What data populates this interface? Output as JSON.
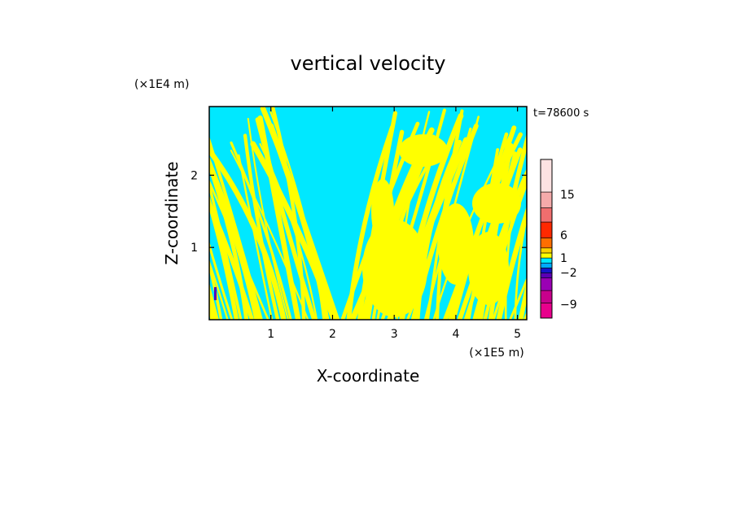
{
  "chart_data": {
    "type": "heatmap",
    "title": "vertical velocity",
    "xlabel": "X-coordinate",
    "ylabel": "Z-coordinate",
    "x_unit": "(×1E5 m)",
    "y_unit": "(×1E4 m)",
    "time_label": "t=78600 s",
    "xlim": [
      0,
      5.15
    ],
    "ylim": [
      0,
      2.95
    ],
    "x_ticks": [
      "1",
      "2",
      "3",
      "4",
      "5"
    ],
    "y_ticks": [
      "1",
      "2"
    ],
    "colorbar": {
      "tick_labels": [
        "15",
        "6",
        "1",
        "−2",
        "−9"
      ],
      "colors_bottom_to_top": [
        "#e8008c",
        "#c8008c",
        "#9a00b4",
        "#5a00b4",
        "#1414c8",
        "#00aaff",
        "#00e8ff",
        "#ffff00",
        "#ffd200",
        "#ff6e00",
        "#ff2800",
        "#f06e6e",
        "#f5aaaa",
        "#fde2e2"
      ]
    },
    "field_colors": {
      "positive": "#ffff00",
      "negative": "#00e8ff",
      "strong_negative": "#5a00b4"
    }
  }
}
